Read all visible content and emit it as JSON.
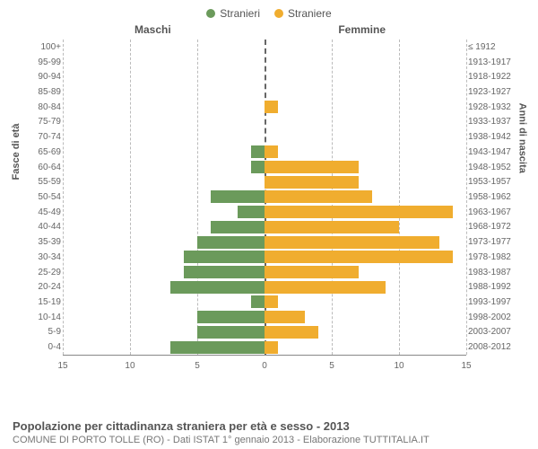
{
  "legend": {
    "male": {
      "label": "Stranieri",
      "color": "#6b9a5b"
    },
    "female": {
      "label": "Straniere",
      "color": "#f0ad2f"
    }
  },
  "headers": {
    "male": "Maschi",
    "female": "Femmine"
  },
  "axis_labels": {
    "left": "Fasce di età",
    "right": "Anni di nascita"
  },
  "x_axis": {
    "min": 0,
    "max": 15,
    "ticks_left": [
      15,
      10,
      5,
      0
    ],
    "ticks_right": [
      5,
      10,
      15
    ]
  },
  "grid_color": "#bbbbbb",
  "center_line_color": "#666666",
  "background_color": "#ffffff",
  "rows": [
    {
      "age": "100+",
      "year": "≤ 1912",
      "male": 0,
      "female": 0
    },
    {
      "age": "95-99",
      "year": "1913-1917",
      "male": 0,
      "female": 0
    },
    {
      "age": "90-94",
      "year": "1918-1922",
      "male": 0,
      "female": 0
    },
    {
      "age": "85-89",
      "year": "1923-1927",
      "male": 0,
      "female": 0
    },
    {
      "age": "80-84",
      "year": "1928-1932",
      "male": 0,
      "female": 1
    },
    {
      "age": "75-79",
      "year": "1933-1937",
      "male": 0,
      "female": 0
    },
    {
      "age": "70-74",
      "year": "1938-1942",
      "male": 0,
      "female": 0
    },
    {
      "age": "65-69",
      "year": "1943-1947",
      "male": 1,
      "female": 1
    },
    {
      "age": "60-64",
      "year": "1948-1952",
      "male": 1,
      "female": 7
    },
    {
      "age": "55-59",
      "year": "1953-1957",
      "male": 0,
      "female": 7
    },
    {
      "age": "50-54",
      "year": "1958-1962",
      "male": 4,
      "female": 8
    },
    {
      "age": "45-49",
      "year": "1963-1967",
      "male": 2,
      "female": 14
    },
    {
      "age": "40-44",
      "year": "1968-1972",
      "male": 4,
      "female": 10
    },
    {
      "age": "35-39",
      "year": "1973-1977",
      "male": 5,
      "female": 13
    },
    {
      "age": "30-34",
      "year": "1978-1982",
      "male": 6,
      "female": 14
    },
    {
      "age": "25-29",
      "year": "1983-1987",
      "male": 6,
      "female": 7
    },
    {
      "age": "20-24",
      "year": "1988-1992",
      "male": 7,
      "female": 9
    },
    {
      "age": "15-19",
      "year": "1993-1997",
      "male": 1,
      "female": 1
    },
    {
      "age": "10-14",
      "year": "1998-2002",
      "male": 5,
      "female": 3
    },
    {
      "age": "5-9",
      "year": "2003-2007",
      "male": 5,
      "female": 4
    },
    {
      "age": "0-4",
      "year": "2008-2012",
      "male": 7,
      "female": 1
    }
  ],
  "footer": {
    "title": "Popolazione per cittadinanza straniera per età e sesso - 2013",
    "subtitle": "COMUNE DI PORTO TOLLE (RO) - Dati ISTAT 1° gennaio 2013 - Elaborazione TUTTITALIA.IT"
  }
}
